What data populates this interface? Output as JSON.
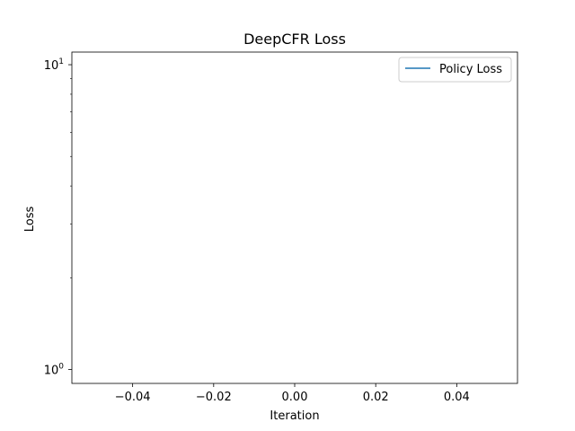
{
  "chart_data": {
    "type": "line",
    "title": "DeepCFR Loss",
    "xlabel": "Iteration",
    "ylabel": "Loss",
    "xlim": [
      -0.055,
      0.055
    ],
    "ylim": [
      0.9,
      11
    ],
    "yscale": "log",
    "x_ticks": [
      {
        "value": -0.04,
        "label": "−0.04"
      },
      {
        "value": -0.02,
        "label": "−0.02"
      },
      {
        "value": 0.0,
        "label": "0.00"
      },
      {
        "value": 0.02,
        "label": "0.02"
      },
      {
        "value": 0.04,
        "label": "0.04"
      }
    ],
    "y_ticks": [
      {
        "value": 1,
        "base": "10",
        "exp": "0"
      },
      {
        "value": 10,
        "base": "10",
        "exp": "1"
      }
    ],
    "y_minor_ticks": [
      2,
      3,
      4,
      5,
      6,
      7,
      8,
      9
    ],
    "grid": false,
    "legend_position": "top-right",
    "series": [
      {
        "name": "Policy Loss",
        "color": "#1f77b4",
        "x": [],
        "y": []
      }
    ]
  }
}
